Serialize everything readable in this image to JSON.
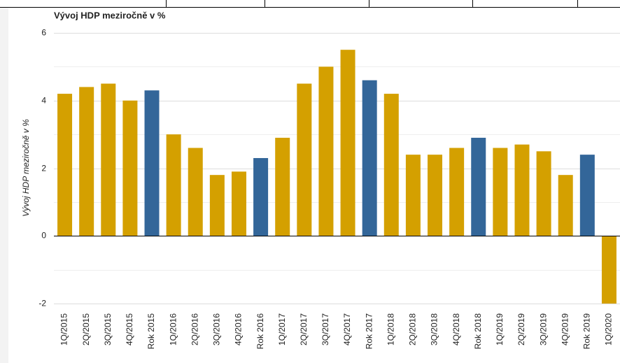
{
  "chart_data": {
    "type": "bar",
    "title": "Vývoj HDP meziročně v %",
    "y_label": "Vývoj HDP meziročně v %",
    "categories": [
      "1Q/2015",
      "2Q/2015",
      "3Q/2015",
      "4Q/2015",
      "Rok 2015",
      "1Q/2016",
      "2Q/2016",
      "3Q/2016",
      "4Q/2016",
      "Rok 2016",
      "1Q/2017",
      "2Q/2017",
      "3Q/2017",
      "4Q/2017",
      "Rok 2017",
      "1Q/2018",
      "2Q/2018",
      "3Q/2018",
      "4Q/2018",
      "Rok 2018",
      "1Q/2019",
      "2Q/2019",
      "3Q/2019",
      "4Q/2019",
      "Rok 2019",
      "1Q/2020"
    ],
    "values": [
      4.2,
      4.4,
      4.5,
      4.0,
      4.3,
      3.0,
      2.6,
      1.8,
      1.9,
      2.3,
      2.9,
      4.5,
      5.0,
      5.5,
      4.6,
      4.2,
      2.4,
      2.4,
      2.6,
      2.9,
      2.6,
      2.7,
      2.5,
      1.8,
      2.4,
      -2.0
    ],
    "colors": [
      "#d4a000",
      "#d4a000",
      "#d4a000",
      "#d4a000",
      "#336699",
      "#d4a000",
      "#d4a000",
      "#d4a000",
      "#d4a000",
      "#336699",
      "#d4a000",
      "#d4a000",
      "#d4a000",
      "#d4a000",
      "#336699",
      "#d4a000",
      "#d4a000",
      "#d4a000",
      "#d4a000",
      "#336699",
      "#d4a000",
      "#d4a000",
      "#d4a000",
      "#d4a000",
      "#336699",
      "#d4a000"
    ],
    "ylim": [
      -2,
      6
    ],
    "yticks": [
      -2,
      0,
      2,
      4,
      6
    ],
    "minor_grid": [
      -1,
      1,
      3,
      5
    ],
    "grid": true
  }
}
